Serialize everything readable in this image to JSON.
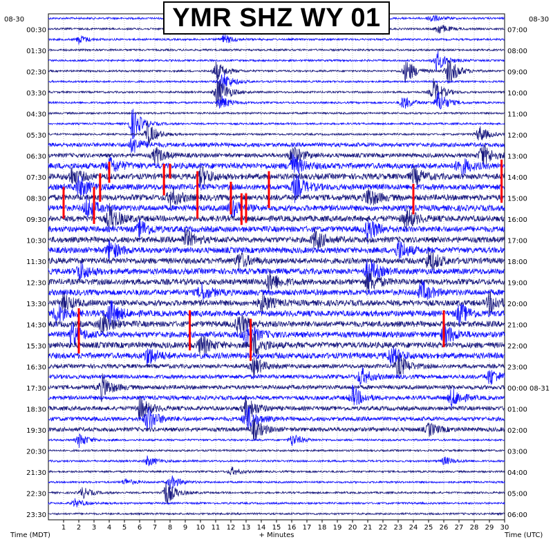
{
  "chart_data": {
    "type": "line",
    "title": "YMR SHZ WY 01",
    "left_date": "08-30",
    "right_date": "08-30",
    "right_date_change": "08-31",
    "xlabel_left": "Time (MDT)",
    "xlabel_center": "+ Minutes",
    "xlabel_right": "Time (UTC)",
    "x_ticks": [
      "1",
      "2",
      "3",
      "4",
      "5",
      "6",
      "7",
      "8",
      "9",
      "10",
      "11",
      "12",
      "13",
      "14",
      "15",
      "16",
      "17",
      "18",
      "19",
      "20",
      "21",
      "22",
      "23",
      "24",
      "25",
      "26",
      "27",
      "28",
      "29",
      "30"
    ],
    "left_labels": [
      "00:30",
      "01:30",
      "02:30",
      "03:30",
      "04:30",
      "05:30",
      "06:30",
      "07:30",
      "08:30",
      "09:30",
      "10:30",
      "11:30",
      "12:30",
      "13:30",
      "14:30",
      "15:30",
      "16:30",
      "17:30",
      "18:30",
      "19:30",
      "20:30",
      "21:30",
      "22:30",
      "23:30"
    ],
    "right_labels": [
      "07:00",
      "08:00",
      "09:00",
      "10:00",
      "11:00",
      "12:00",
      "13:00",
      "14:00",
      "15:00",
      "16:00",
      "17:00",
      "18:00",
      "19:00",
      "20:00",
      "21:00",
      "22:00",
      "23:00",
      "00:00",
      "01:00",
      "02:00",
      "03:00",
      "04:00",
      "05:00",
      "06:00"
    ],
    "traces_per_hour": 2,
    "minutes_per_trace": 30,
    "colors": {
      "trace_a": "#1a1a80",
      "trace_b": "#1010ff",
      "clipped": "#ff0000",
      "grid": "#909090"
    },
    "events": [
      {
        "trace": 0,
        "minute": 25.1,
        "amp": 0.6
      },
      {
        "trace": 1,
        "minute": 25.6,
        "amp": 0.8
      },
      {
        "trace": 2,
        "minute": 2.0,
        "amp": 0.6
      },
      {
        "trace": 2,
        "minute": 11.5,
        "amp": 0.7
      },
      {
        "trace": 4,
        "minute": 25.5,
        "amp": 1.5
      },
      {
        "trace": 5,
        "minute": 11.0,
        "amp": 1.4
      },
      {
        "trace": 5,
        "minute": 23.5,
        "amp": 1.8
      },
      {
        "trace": 5,
        "minute": 26.3,
        "amp": 2.0
      },
      {
        "trace": 6,
        "minute": 11.4,
        "amp": 1.5
      },
      {
        "trace": 7,
        "minute": 11.1,
        "amp": 2.4
      },
      {
        "trace": 7,
        "minute": 25.3,
        "amp": 1.8
      },
      {
        "trace": 8,
        "minute": 11.3,
        "amp": 1.0
      },
      {
        "trace": 8,
        "minute": 23.3,
        "amp": 1.0
      },
      {
        "trace": 8,
        "minute": 25.6,
        "amp": 1.6
      },
      {
        "trace": 10,
        "minute": 5.5,
        "amp": 2.3
      },
      {
        "trace": 11,
        "minute": 6.5,
        "amp": 1.7
      },
      {
        "trace": 11,
        "minute": 28.3,
        "amp": 1.2
      },
      {
        "trace": 12,
        "minute": 5.5,
        "amp": 1.2
      },
      {
        "trace": 13,
        "minute": 7.0,
        "amp": 1.2
      },
      {
        "trace": 13,
        "minute": 16.0,
        "amp": 1.5
      },
      {
        "trace": 13,
        "minute": 28.5,
        "amp": 1.8
      },
      {
        "trace": 14,
        "minute": 4.0,
        "amp": 1.2
      },
      {
        "trace": 14,
        "minute": 16.0,
        "amp": 1.6
      },
      {
        "trace": 14,
        "minute": 27.0,
        "amp": 1.5
      },
      {
        "trace": 15,
        "minute": 1.5,
        "amp": 1.3
      },
      {
        "trace": 15,
        "minute": 10.0,
        "amp": 1.4
      },
      {
        "trace": 15,
        "minute": 24.0,
        "amp": 1.2
      },
      {
        "trace": 16,
        "minute": 2.0,
        "amp": 1.6
      },
      {
        "trace": 16,
        "minute": 16.2,
        "amp": 1.8
      },
      {
        "trace": 17,
        "minute": 8.0,
        "amp": 1.4
      },
      {
        "trace": 17,
        "minute": 21.0,
        "amp": 1.4
      },
      {
        "trace": 18,
        "minute": 2.5,
        "amp": 1.5
      },
      {
        "trace": 18,
        "minute": 12.0,
        "amp": 1.3
      },
      {
        "trace": 19,
        "minute": 4.0,
        "amp": 1.8
      },
      {
        "trace": 19,
        "minute": 23.5,
        "amp": 1.5
      },
      {
        "trace": 20,
        "minute": 6.0,
        "amp": 1.3
      },
      {
        "trace": 20,
        "minute": 21.0,
        "amp": 1.6
      },
      {
        "trace": 21,
        "minute": 9.0,
        "amp": 1.3
      },
      {
        "trace": 21,
        "minute": 17.5,
        "amp": 1.5
      },
      {
        "trace": 22,
        "minute": 4.0,
        "amp": 1.4
      },
      {
        "trace": 22,
        "minute": 23.0,
        "amp": 1.4
      },
      {
        "trace": 23,
        "minute": 12.5,
        "amp": 1.2
      },
      {
        "trace": 23,
        "minute": 25.0,
        "amp": 1.6
      },
      {
        "trace": 24,
        "minute": 2.0,
        "amp": 1.3
      },
      {
        "trace": 24,
        "minute": 21.0,
        "amp": 1.8
      },
      {
        "trace": 25,
        "minute": 14.5,
        "amp": 1.5
      },
      {
        "trace": 25,
        "minute": 21.0,
        "amp": 1.5
      },
      {
        "trace": 26,
        "minute": 10.0,
        "amp": 1.2
      },
      {
        "trace": 26,
        "minute": 24.5,
        "amp": 1.5
      },
      {
        "trace": 27,
        "minute": 1.0,
        "amp": 1.2
      },
      {
        "trace": 27,
        "minute": 14.0,
        "amp": 1.3
      },
      {
        "trace": 27,
        "minute": 29.0,
        "amp": 1.4
      },
      {
        "trace": 28,
        "minute": 0.5,
        "amp": 1.5
      },
      {
        "trace": 28,
        "minute": 4.0,
        "amp": 1.9
      },
      {
        "trace": 28,
        "minute": 27.0,
        "amp": 1.5
      },
      {
        "trace": 29,
        "minute": 3.5,
        "amp": 1.5
      },
      {
        "trace": 29,
        "minute": 12.5,
        "amp": 1.6
      },
      {
        "trace": 30,
        "minute": 1.5,
        "amp": 1.8
      },
      {
        "trace": 30,
        "minute": 13.0,
        "amp": 1.9
      },
      {
        "trace": 30,
        "minute": 26.0,
        "amp": 1.6
      },
      {
        "trace": 31,
        "minute": 10.0,
        "amp": 1.4
      },
      {
        "trace": 31,
        "minute": 13.5,
        "amp": 1.6
      },
      {
        "trace": 32,
        "minute": 6.5,
        "amp": 1.3
      },
      {
        "trace": 32,
        "minute": 22.5,
        "amp": 1.3
      },
      {
        "trace": 33,
        "minute": 13.5,
        "amp": 1.3
      },
      {
        "trace": 33,
        "minute": 23.0,
        "amp": 1.6
      },
      {
        "trace": 34,
        "minute": 20.5,
        "amp": 1.3
      },
      {
        "trace": 34,
        "minute": 29.0,
        "amp": 1.2
      },
      {
        "trace": 35,
        "minute": 3.5,
        "amp": 1.7
      },
      {
        "trace": 36,
        "minute": 20.0,
        "amp": 1.5
      },
      {
        "trace": 36,
        "minute": 26.5,
        "amp": 1.4
      },
      {
        "trace": 37,
        "minute": 6.0,
        "amp": 1.6
      },
      {
        "trace": 37,
        "minute": 13.0,
        "amp": 1.8
      },
      {
        "trace": 38,
        "minute": 6.5,
        "amp": 1.8
      },
      {
        "trace": 38,
        "minute": 13.0,
        "amp": 2.0
      },
      {
        "trace": 39,
        "minute": 13.5,
        "amp": 1.4
      },
      {
        "trace": 39,
        "minute": 25.0,
        "amp": 0.9
      },
      {
        "trace": 40,
        "minute": 2.0,
        "amp": 1.0
      },
      {
        "trace": 40,
        "minute": 16.0,
        "amp": 0.9
      },
      {
        "trace": 42,
        "minute": 6.5,
        "amp": 0.7
      },
      {
        "trace": 42,
        "minute": 26.0,
        "amp": 0.6
      },
      {
        "trace": 43,
        "minute": 12.0,
        "amp": 0.6
      },
      {
        "trace": 44,
        "minute": 5.0,
        "amp": 0.5
      },
      {
        "trace": 44,
        "minute": 8.0,
        "amp": 1.0
      },
      {
        "trace": 45,
        "minute": 7.7,
        "amp": 1.8
      },
      {
        "trace": 45,
        "minute": 2.2,
        "amp": 0.8
      },
      {
        "trace": 46,
        "minute": 1.7,
        "amp": 0.6
      }
    ],
    "clipped_spikes": [
      {
        "trace": 14,
        "minute": 4.0,
        "top": -0.4,
        "bottom": 1.6
      },
      {
        "trace": 14,
        "minute": 7.6,
        "top": -0.2,
        "bottom": 2.8
      },
      {
        "trace": 14,
        "minute": 8.0,
        "top": -0.2,
        "bottom": 1.2
      },
      {
        "trace": 14,
        "minute": 29.8,
        "top": -0.6,
        "bottom": 3.5
      },
      {
        "trace": 15,
        "minute": 3.4,
        "top": -0.3,
        "bottom": 2.4
      },
      {
        "trace": 15,
        "minute": 9.8,
        "top": -0.5,
        "bottom": 4.0
      },
      {
        "trace": 15,
        "minute": 14.5,
        "top": -0.5,
        "bottom": 3.0
      },
      {
        "trace": 16,
        "minute": 1.0,
        "top": 0.0,
        "bottom": 3.0
      },
      {
        "trace": 16,
        "minute": 3.0,
        "top": 0.0,
        "bottom": 3.5
      },
      {
        "trace": 16,
        "minute": 12.0,
        "top": -0.5,
        "bottom": 2.6
      },
      {
        "trace": 16,
        "minute": 24.0,
        "top": -0.3,
        "bottom": 2.6
      },
      {
        "trace": 17,
        "minute": 12.7,
        "top": -0.4,
        "bottom": 2.6
      },
      {
        "trace": 17,
        "minute": 13.0,
        "top": -0.4,
        "bottom": 2.4
      },
      {
        "trace": 28,
        "minute": 2.0,
        "top": -0.5,
        "bottom": 3.8
      },
      {
        "trace": 28,
        "minute": 9.3,
        "top": -0.3,
        "bottom": 3.5
      },
      {
        "trace": 28,
        "minute": 26.0,
        "top": -0.3,
        "bottom": 3.2
      },
      {
        "trace": 29,
        "minute": 13.3,
        "top": -0.5,
        "bottom": 3.5
      }
    ]
  }
}
